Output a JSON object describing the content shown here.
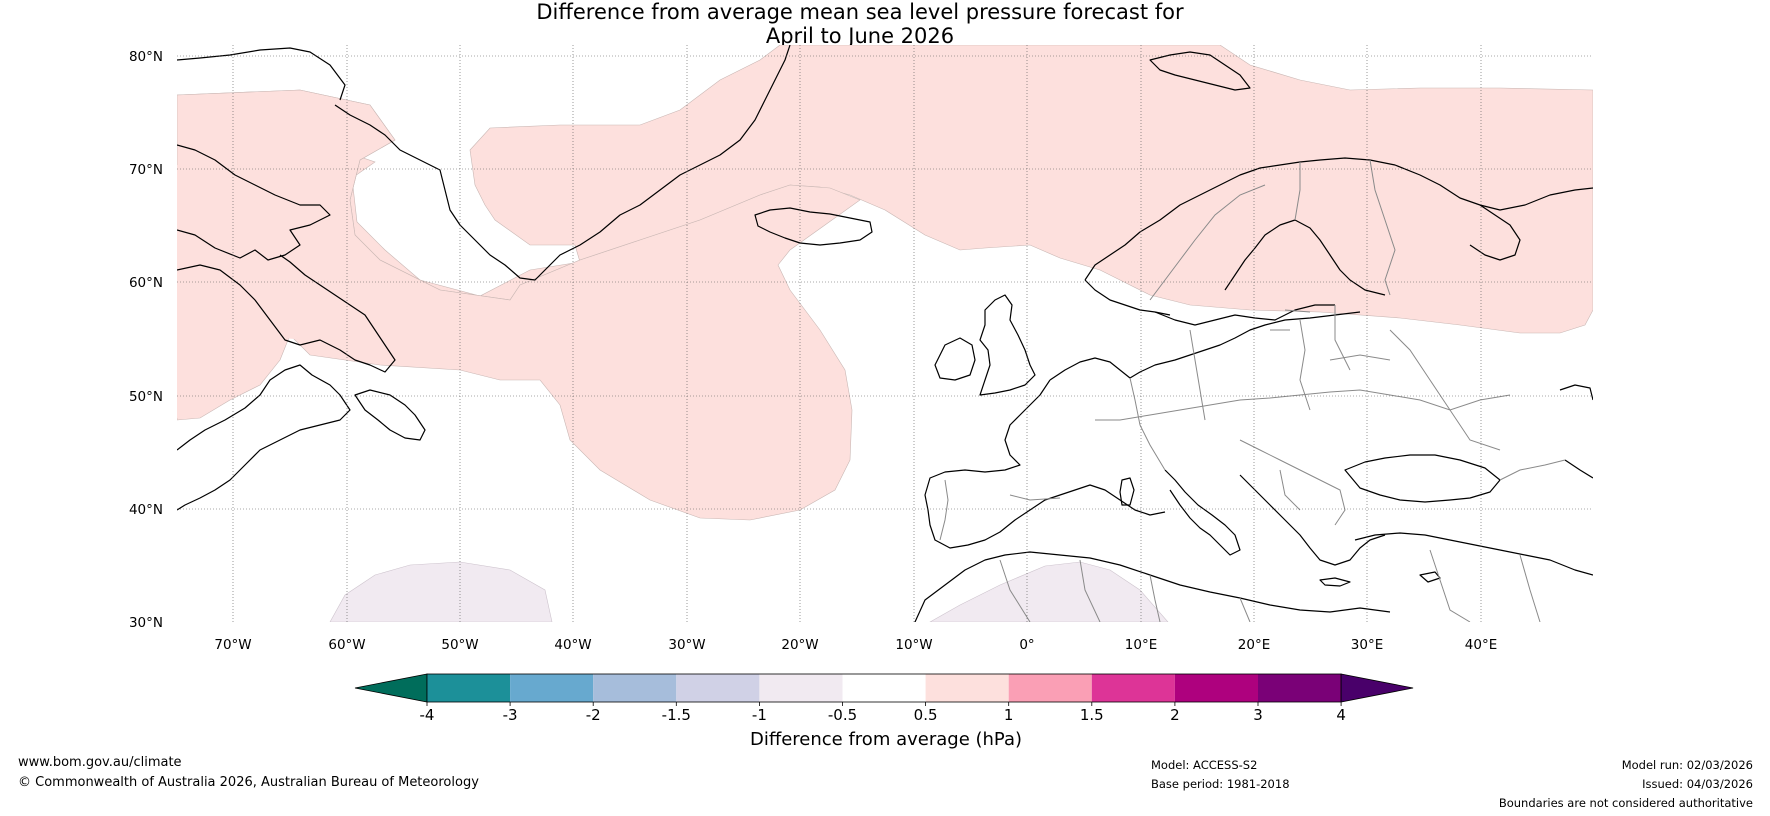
{
  "title": {
    "line1": "Difference from average mean sea level pressure forecast for",
    "line2": "April to June 2026"
  },
  "map": {
    "lat_labels": [
      "80°N",
      "70°N",
      "60°N",
      "50°N",
      "40°N",
      "30°N"
    ],
    "lon_labels": [
      "70°W",
      "60°W",
      "50°W",
      "40°W",
      "30°W",
      "20°W",
      "10°W",
      "0°",
      "10°E",
      "20°E",
      "30°E",
      "40°E"
    ],
    "colors": {
      "ocean": "#ffffff",
      "land_outline": "#000000",
      "border": "#808080",
      "anomaly_positive_05_1": "#fde0dd",
      "anomaly_negative_05_1": "#f1eaf1"
    }
  },
  "colorbar": {
    "label": "Difference from average (hPa)",
    "ticks": [
      "-4",
      "-3",
      "-2",
      "-1.5",
      "-1",
      "-0.5",
      "0.5",
      "1",
      "1.5",
      "2",
      "3",
      "4"
    ],
    "colors": [
      "#006d5b",
      "#1c9099",
      "#67a9cf",
      "#a6bddb",
      "#d0d1e6",
      "#f1eaf1",
      "#ffffff",
      "#fde0dd",
      "#fa9fb5",
      "#dd3497",
      "#ae017e",
      "#7a0177",
      "#49006a"
    ]
  },
  "footer": {
    "website": "www.bom.gov.au/climate",
    "copyright": "© Commonwealth of Australia 2026, Australian Bureau of Meteorology",
    "model": "Model: ACCESS-S2",
    "base_period": "Base period: 1981-2018",
    "model_run": "Model run: 02/03/2026",
    "issued": "Issued: 04/03/2026",
    "disclaimer": "Boundaries are not considered authoritative"
  }
}
